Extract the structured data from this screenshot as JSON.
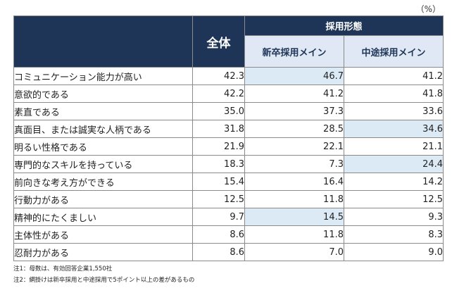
{
  "unit": "（%）",
  "header": {
    "all": "全体",
    "group": "採用形態",
    "new_grad": "新卒採用メイン",
    "mid_career": "中途採用メイン"
  },
  "rows": [
    {
      "label": "コミュニケーション能力が高い",
      "all": "42.3",
      "new_grad": "46.7",
      "mid_career": "41.2",
      "highlight": "new_grad"
    },
    {
      "label": "意欲的である",
      "all": "42.2",
      "new_grad": "41.2",
      "mid_career": "41.8",
      "highlight": ""
    },
    {
      "label": "素直である",
      "all": "35.0",
      "new_grad": "37.3",
      "mid_career": "33.6",
      "highlight": ""
    },
    {
      "label": "真面目、または誠実な人柄である",
      "all": "31.8",
      "new_grad": "28.5",
      "mid_career": "34.6",
      "highlight": "mid_career"
    },
    {
      "label": "明るい性格である",
      "all": "21.9",
      "new_grad": "22.1",
      "mid_career": "21.1",
      "highlight": ""
    },
    {
      "label": "専門的なスキルを持っている",
      "all": "18.3",
      "new_grad": "7.3",
      "mid_career": "24.4",
      "highlight": "mid_career"
    },
    {
      "label": "前向きな考え方ができる",
      "all": "15.4",
      "new_grad": "16.4",
      "mid_career": "14.2",
      "highlight": ""
    },
    {
      "label": "行動力がある",
      "all": "12.5",
      "new_grad": "11.8",
      "mid_career": "12.5",
      "highlight": ""
    },
    {
      "label": "精神的にたくましい",
      "all": "9.7",
      "new_grad": "14.5",
      "mid_career": "9.3",
      "highlight": "new_grad"
    },
    {
      "label": "主体性がある",
      "all": "8.6",
      "new_grad": "11.8",
      "mid_career": "8.3",
      "highlight": ""
    },
    {
      "label": "忍耐力がある",
      "all": "8.6",
      "new_grad": "7.0",
      "mid_career": "9.0",
      "highlight": ""
    }
  ],
  "notes": [
    "注1：母数は、有効回答企業1,550社",
    "注2：網掛けは新卒採用と中途採用で5ポイント以上の差があるもの"
  ],
  "colors": {
    "header_dark": "#1f3558",
    "header_light": "#dfe8f4",
    "highlight": "#dceaf6"
  }
}
